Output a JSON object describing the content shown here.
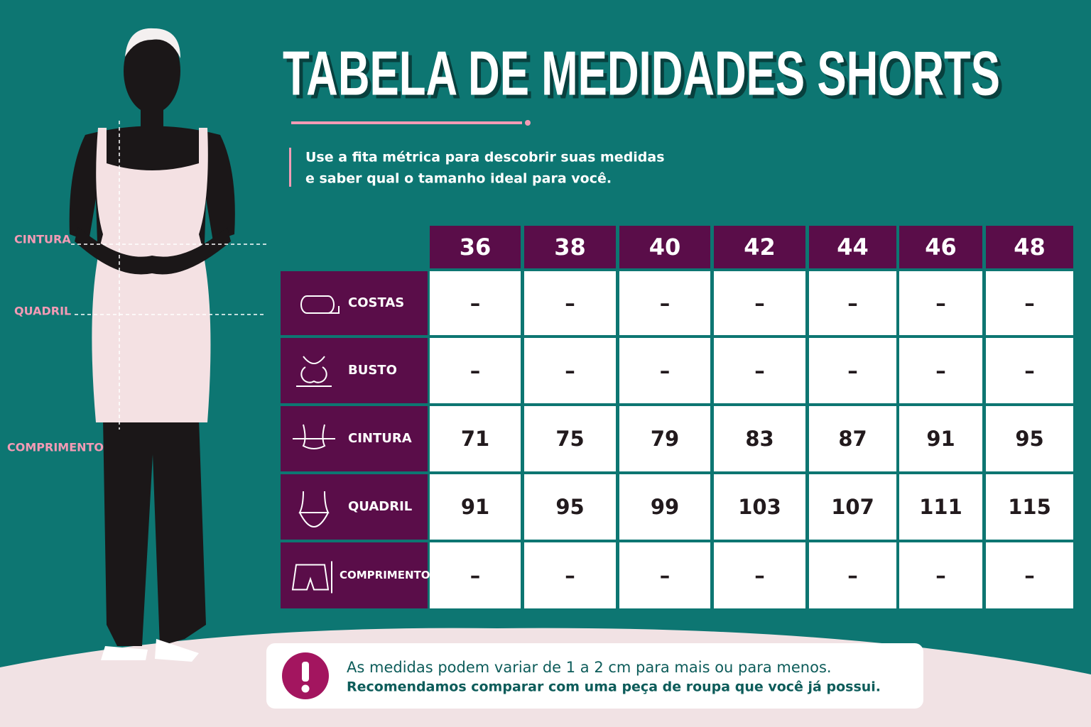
{
  "header": {
    "title": "TABELA DE MEDIDADES SHORTS",
    "subtitle": [
      "Use a fita métrica para descobrir suas medidas",
      "e saber qual o tamanho ideal para você."
    ]
  },
  "figure": {
    "labels": [
      "CINTURA",
      "QUADRIL",
      "COMPRIMENTO"
    ]
  },
  "table": {
    "columns": [
      36,
      38,
      40,
      42,
      44,
      46,
      48
    ],
    "rows": [
      {
        "label": "COSTAS",
        "cells": [
          "–",
          "–",
          "–",
          "–",
          "–",
          "–",
          "–"
        ]
      },
      {
        "label": "BUSTO",
        "cells": [
          "–",
          "–",
          "–",
          "–",
          "–",
          "–",
          "–"
        ]
      },
      {
        "label": "CINTURA",
        "cells": [
          71,
          75,
          79,
          83,
          87,
          91,
          95
        ]
      },
      {
        "label": "QUADRIL",
        "cells": [
          91,
          95,
          99,
          103,
          107,
          111,
          115
        ]
      },
      {
        "label": "COMPRIMENTO",
        "cells": [
          "–",
          "–",
          "–",
          "–",
          "–",
          "–",
          "–"
        ]
      }
    ]
  },
  "note": {
    "lines": [
      "As medidas podem variar de 1 a 2 cm para mais ou para menos.",
      "Recomendamos comparar com uma peça de roupa que você já possui."
    ]
  }
}
